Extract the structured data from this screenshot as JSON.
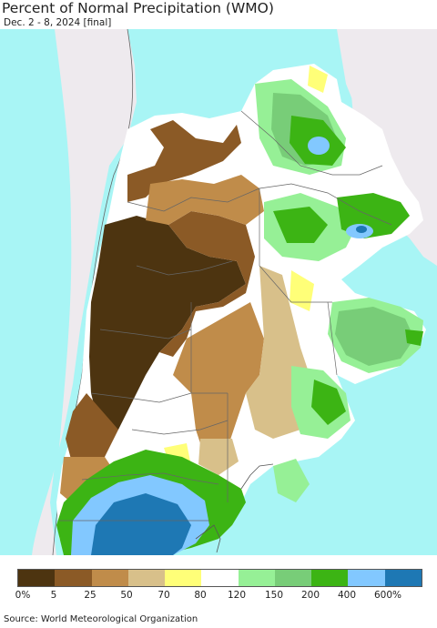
{
  "title": "Percent of Normal Precipitation (WMO)",
  "subtitle": "Dec. 2 - 8, 2024 [final]",
  "legend": {
    "labels": [
      "0%",
      "5",
      "25",
      "50",
      "70",
      "80",
      "120",
      "150",
      "200",
      "400",
      "600%"
    ],
    "colors": [
      "#4d3410",
      "#8b5a26",
      "#c08c4a",
      "#d8c08a",
      "#ffff78",
      "#ffffff",
      "#96f096",
      "#78cd78",
      "#3cb414",
      "#82c8ff",
      "#1e78b4"
    ]
  },
  "colors": {
    "ocean": "#a8f5f5",
    "outside_land": "#eeeaee",
    "country_border": "#555555"
  },
  "source": "Source: World Meteorological Organization"
}
